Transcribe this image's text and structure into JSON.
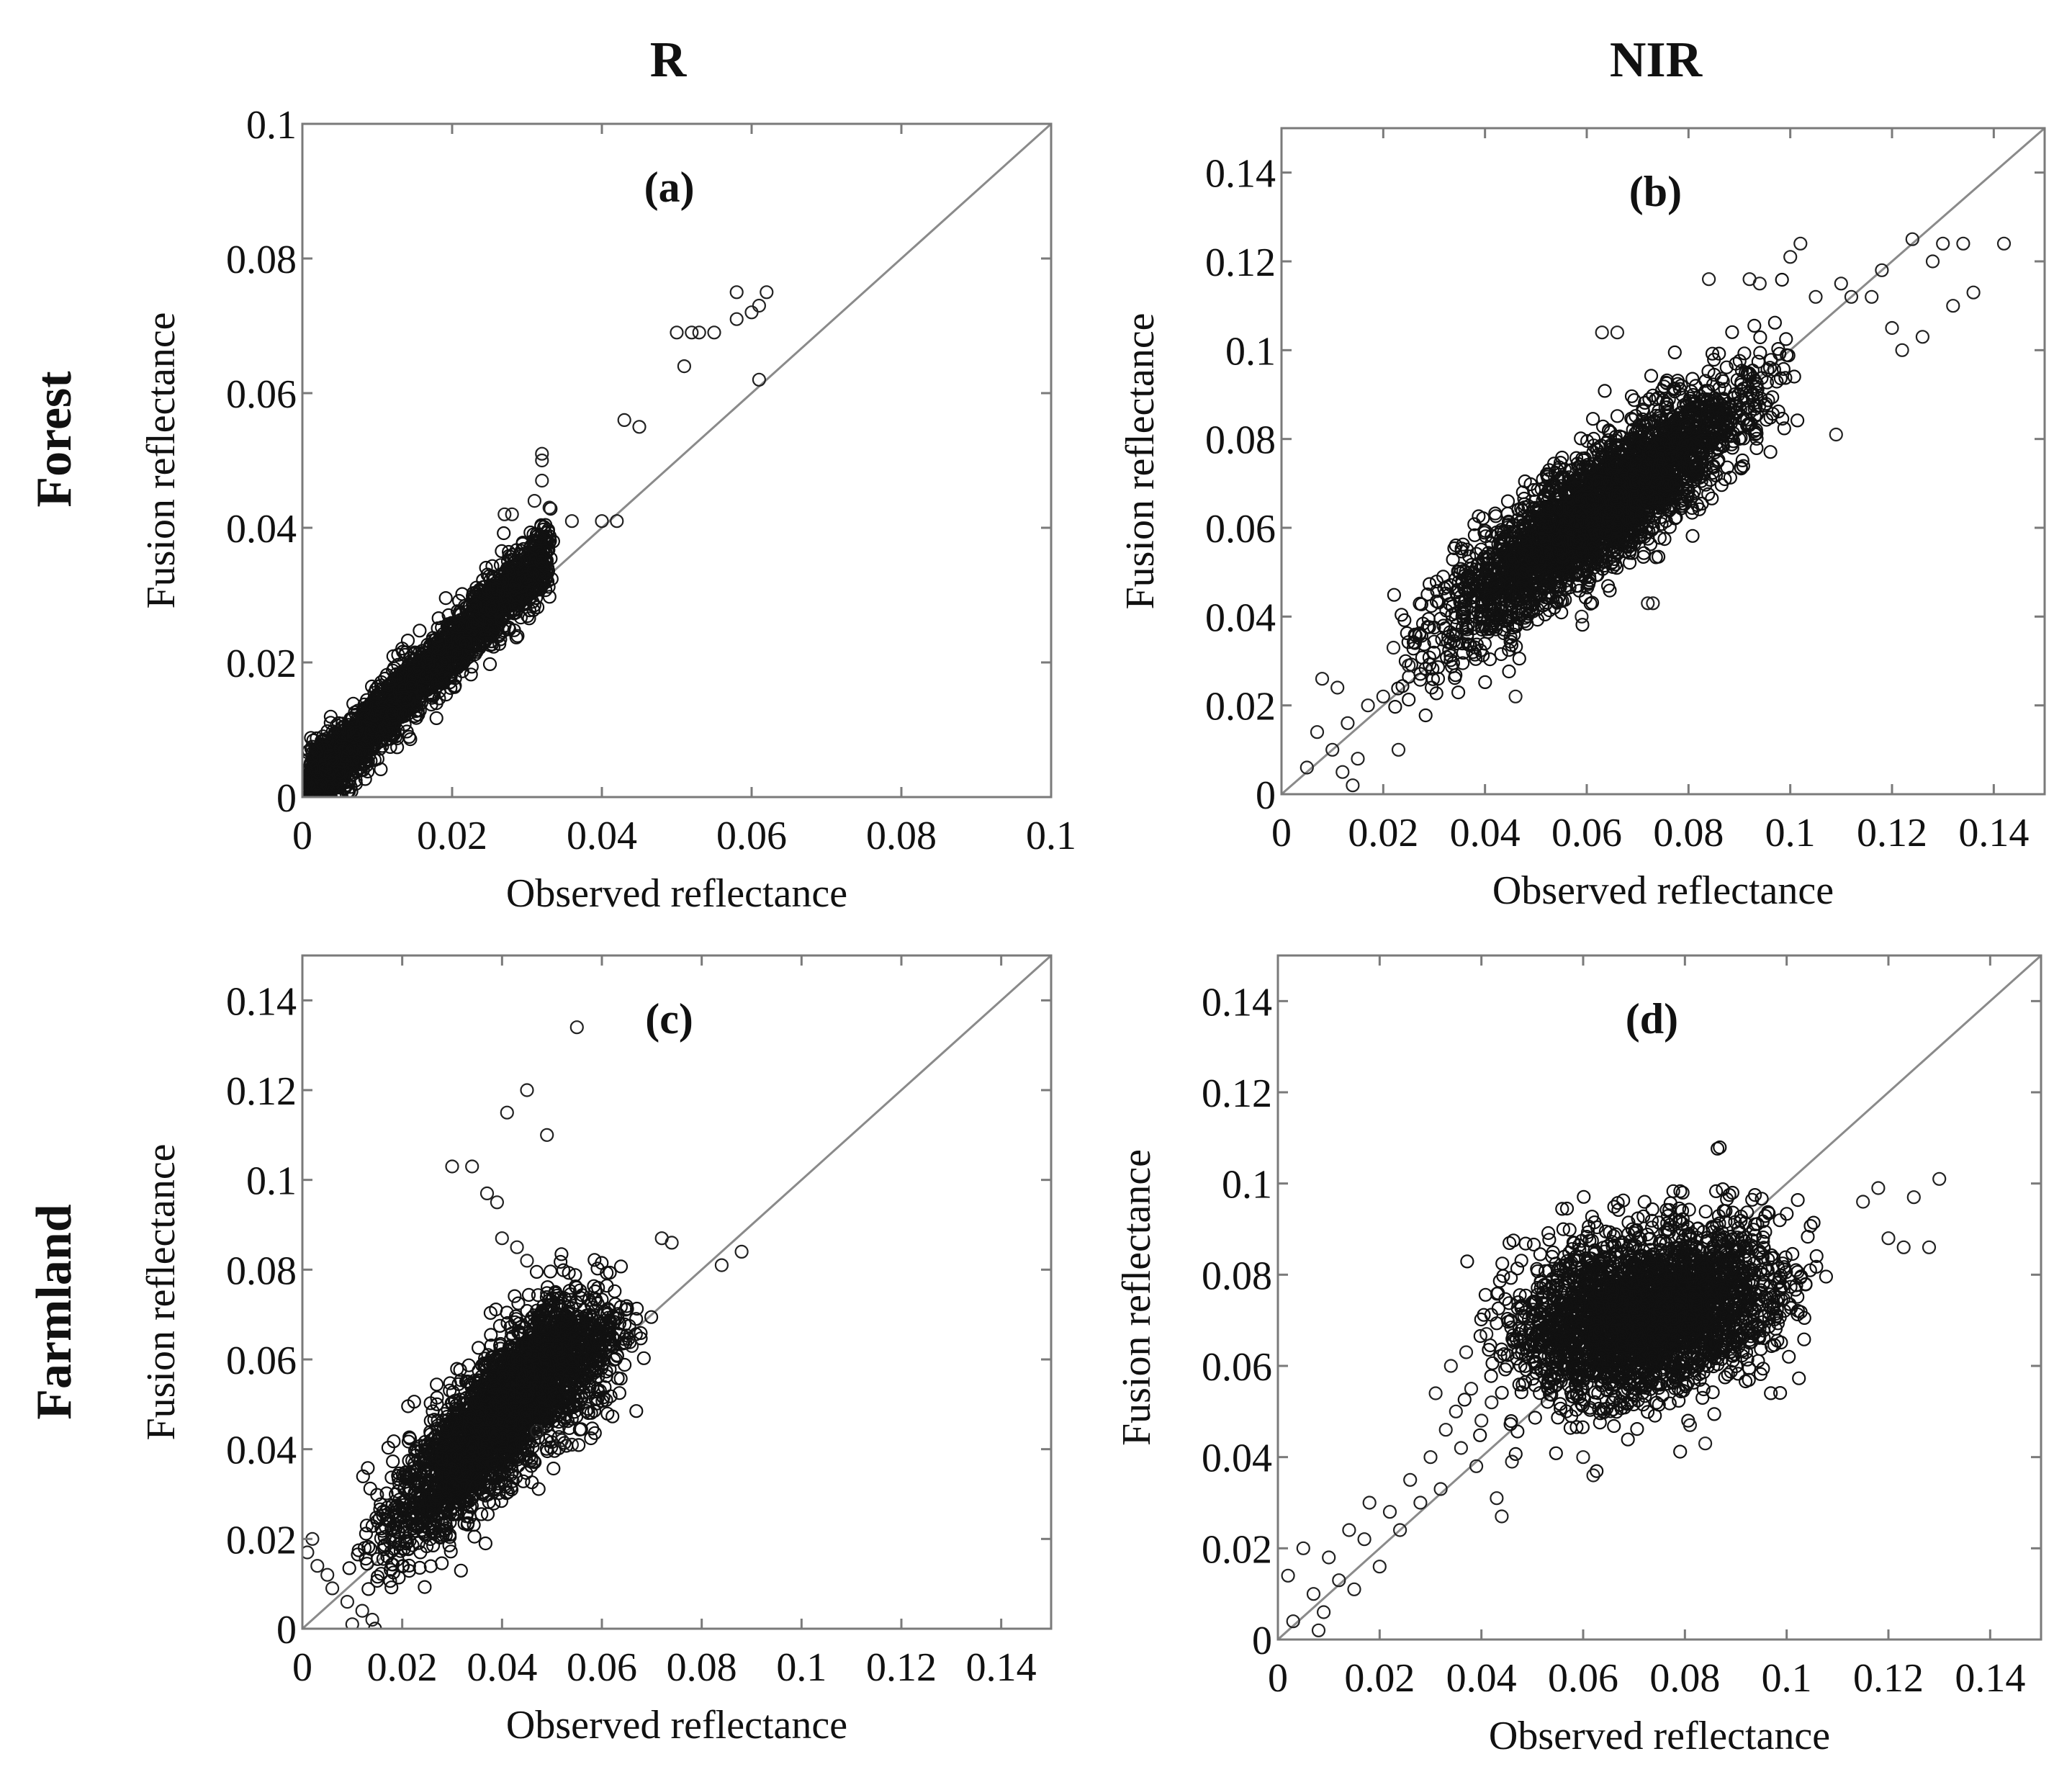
{
  "column_headers": [
    "R",
    "NIR"
  ],
  "row_headers": [
    "Forest",
    "Farmland"
  ],
  "chart_data": [
    {
      "type": "scatter",
      "panel_label": "(a)",
      "band": "R",
      "land_cover": "Forest",
      "xlabel": "Observed reflectance",
      "ylabel": "Fusion reflectance",
      "xlim": [
        0,
        0.1
      ],
      "ylim": [
        0,
        0.1
      ],
      "xticks": [
        "0",
        "0.02",
        "0.04",
        "0.06",
        "0.08",
        "0.1"
      ],
      "yticks": [
        "0",
        "0.02",
        "0.04",
        "0.06",
        "0.08",
        "0.1"
      ],
      "reference_line": "1:1",
      "cloud": {
        "n": 2600,
        "x_range": [
          0.001,
          0.033
        ],
        "slope": 1.08,
        "intercept": 0.0005,
        "spread": 0.0025
      },
      "points": [
        [
          0.05,
          0.069
        ],
        [
          0.051,
          0.064
        ],
        [
          0.052,
          0.069
        ],
        [
          0.053,
          0.069
        ],
        [
          0.055,
          0.069
        ],
        [
          0.058,
          0.071
        ],
        [
          0.058,
          0.075
        ],
        [
          0.06,
          0.072
        ],
        [
          0.061,
          0.073
        ],
        [
          0.062,
          0.075
        ],
        [
          0.061,
          0.062
        ],
        [
          0.043,
          0.056
        ],
        [
          0.045,
          0.055
        ],
        [
          0.032,
          0.051
        ],
        [
          0.032,
          0.05
        ],
        [
          0.032,
          0.047
        ],
        [
          0.028,
          0.042
        ],
        [
          0.027,
          0.042
        ],
        [
          0.036,
          0.041
        ],
        [
          0.04,
          0.041
        ],
        [
          0.042,
          0.041
        ],
        [
          0.031,
          0.044
        ],
        [
          0.033,
          0.043
        ]
      ]
    },
    {
      "type": "scatter",
      "panel_label": "(b)",
      "band": "NIR",
      "land_cover": "Forest",
      "xlabel": "Observed reflectance",
      "ylabel": "Fusion reflectance",
      "xlim": [
        0,
        0.15
      ],
      "ylim": [
        0,
        0.15
      ],
      "xticks": [
        "0",
        "0.02",
        "0.04",
        "0.06",
        "0.08",
        "0.1",
        "0.12",
        "0.14"
      ],
      "yticks": [
        "0",
        "0.02",
        "0.04",
        "0.06",
        "0.08",
        "0.1",
        "0.12",
        "0.14"
      ],
      "reference_line": "1:1",
      "cloud": {
        "n": 3200,
        "x_range": [
          0.02,
          0.105
        ],
        "slope": 0.8,
        "intercept": 0.014,
        "spread": 0.007
      },
      "points": [
        [
          0.005,
          0.006
        ],
        [
          0.007,
          0.014
        ],
        [
          0.008,
          0.026
        ],
        [
          0.01,
          0.01
        ],
        [
          0.012,
          0.005
        ],
        [
          0.013,
          0.016
        ],
        [
          0.011,
          0.024
        ],
        [
          0.014,
          0.002
        ],
        [
          0.015,
          0.008
        ],
        [
          0.017,
          0.02
        ],
        [
          0.02,
          0.022
        ],
        [
          0.022,
          0.033
        ],
        [
          0.023,
          0.01
        ],
        [
          0.025,
          0.029
        ],
        [
          0.102,
          0.124
        ],
        [
          0.1,
          0.121
        ],
        [
          0.105,
          0.112
        ],
        [
          0.11,
          0.115
        ],
        [
          0.112,
          0.112
        ],
        [
          0.116,
          0.112
        ],
        [
          0.118,
          0.118
        ],
        [
          0.12,
          0.105
        ],
        [
          0.122,
          0.1
        ],
        [
          0.124,
          0.125
        ],
        [
          0.126,
          0.103
        ],
        [
          0.128,
          0.12
        ],
        [
          0.13,
          0.124
        ],
        [
          0.132,
          0.11
        ],
        [
          0.134,
          0.124
        ],
        [
          0.136,
          0.113
        ],
        [
          0.142,
          0.124
        ],
        [
          0.109,
          0.081
        ],
        [
          0.063,
          0.104
        ],
        [
          0.066,
          0.104
        ],
        [
          0.084,
          0.116
        ],
        [
          0.092,
          0.116
        ],
        [
          0.094,
          0.115
        ],
        [
          0.059,
          0.04
        ],
        [
          0.072,
          0.043
        ],
        [
          0.073,
          0.043
        ],
        [
          0.046,
          0.022
        ]
      ]
    },
    {
      "type": "scatter",
      "panel_label": "(c)",
      "band": "R",
      "land_cover": "Farmland",
      "xlabel": "Observed reflectance",
      "ylabel": "Fusion reflectance",
      "xlim": [
        0,
        0.15
      ],
      "ylim": [
        0,
        0.15
      ],
      "xticks": [
        "0",
        "0.02",
        "0.04",
        "0.06",
        "0.08",
        "0.1",
        "0.12",
        "0.14"
      ],
      "yticks": [
        "0",
        "0.02",
        "0.04",
        "0.06",
        "0.08",
        "0.1",
        "0.12",
        "0.14"
      ],
      "reference_line": "1:1",
      "cloud": {
        "n": 3000,
        "x_range": [
          0.008,
          0.072
        ],
        "slope": 1.1,
        "intercept": 0.004,
        "spread": 0.0075,
        "flatten_above": 0.05
      },
      "points": [
        [
          0.055,
          0.134
        ],
        [
          0.045,
          0.12
        ],
        [
          0.041,
          0.115
        ],
        [
          0.049,
          0.11
        ],
        [
          0.03,
          0.103
        ],
        [
          0.034,
          0.103
        ],
        [
          0.037,
          0.097
        ],
        [
          0.039,
          0.095
        ],
        [
          0.04,
          0.087
        ],
        [
          0.043,
          0.085
        ],
        [
          0.045,
          0.082
        ],
        [
          0.084,
          0.081
        ],
        [
          0.088,
          0.084
        ],
        [
          0.074,
          0.086
        ],
        [
          0.072,
          0.087
        ],
        [
          0.066,
          0.063
        ],
        [
          0.052,
          0.042
        ],
        [
          0.054,
          0.041
        ],
        [
          0.047,
          0.044
        ],
        [
          0.001,
          0.017
        ],
        [
          0.003,
          0.014
        ],
        [
          0.005,
          0.012
        ],
        [
          0.006,
          0.009
        ],
        [
          0.002,
          0.02
        ],
        [
          0.01,
          0.001
        ],
        [
          0.012,
          0.004
        ],
        [
          0.014,
          0.002
        ],
        [
          0.009,
          0.006
        ]
      ]
    },
    {
      "type": "scatter",
      "panel_label": "(d)",
      "band": "NIR",
      "land_cover": "Farmland",
      "xlabel": "Observed reflectance",
      "ylabel": "Fusion reflectance",
      "xlim": [
        0,
        0.15
      ],
      "ylim": [
        0,
        0.15
      ],
      "xticks": [
        "0",
        "0.02",
        "0.04",
        "0.06",
        "0.08",
        "0.1",
        "0.12",
        "0.14"
      ],
      "yticks": [
        "0",
        "0.02",
        "0.04",
        "0.06",
        "0.08",
        "0.1",
        "0.12",
        "0.14"
      ],
      "reference_line": "1:1",
      "cloud": {
        "n": 3000,
        "x_range": [
          0.035,
          0.11
        ],
        "slope": 0.22,
        "intercept": 0.056,
        "spread": 0.009
      },
      "points": [
        [
          0.002,
          0.014
        ],
        [
          0.003,
          0.004
        ],
        [
          0.005,
          0.02
        ],
        [
          0.007,
          0.01
        ],
        [
          0.008,
          0.002
        ],
        [
          0.009,
          0.006
        ],
        [
          0.01,
          0.018
        ],
        [
          0.012,
          0.013
        ],
        [
          0.014,
          0.024
        ],
        [
          0.015,
          0.011
        ],
        [
          0.017,
          0.022
        ],
        [
          0.018,
          0.03
        ],
        [
          0.02,
          0.016
        ],
        [
          0.022,
          0.028
        ],
        [
          0.024,
          0.024
        ],
        [
          0.026,
          0.035
        ],
        [
          0.028,
          0.03
        ],
        [
          0.03,
          0.04
        ],
        [
          0.031,
          0.054
        ],
        [
          0.032,
          0.033
        ],
        [
          0.033,
          0.046
        ],
        [
          0.034,
          0.06
        ],
        [
          0.035,
          0.05
        ],
        [
          0.036,
          0.042
        ],
        [
          0.037,
          0.063
        ],
        [
          0.038,
          0.055
        ],
        [
          0.039,
          0.038
        ],
        [
          0.04,
          0.048
        ],
        [
          0.041,
          0.067
        ],
        [
          0.042,
          0.052
        ],
        [
          0.043,
          0.031
        ],
        [
          0.044,
          0.027
        ],
        [
          0.046,
          0.039
        ],
        [
          0.115,
          0.096
        ],
        [
          0.118,
          0.099
        ],
        [
          0.12,
          0.088
        ],
        [
          0.123,
          0.086
        ],
        [
          0.125,
          0.097
        ],
        [
          0.128,
          0.086
        ],
        [
          0.13,
          0.101
        ],
        [
          0.084,
          0.043
        ],
        [
          0.081,
          0.047
        ],
        [
          0.06,
          0.04
        ],
        [
          0.062,
          0.036
        ]
      ]
    }
  ]
}
